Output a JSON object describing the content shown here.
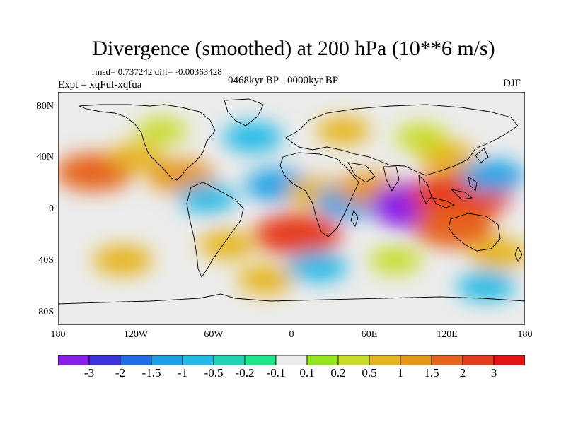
{
  "title": "Divergence (smoothed) at 200 hPa (10**6 m/s)",
  "stats": "rmsd= 0.737242 diff= -0.00363428",
  "experiment": "Expt = xqFul-xqfua",
  "period": "0468kyr BP - 0000kyr BP",
  "season": "DJF",
  "lat_labels": [
    "80N",
    "40N",
    "0",
    "40S",
    "80S"
  ],
  "lon_labels": [
    "180",
    "120W",
    "60W",
    "0",
    "60E",
    "120E",
    "180"
  ],
  "colorbar": {
    "levels": [
      "-3",
      "-2",
      "-1.5",
      "-1",
      "-0.5",
      "-0.2",
      "-0.1",
      "0.1",
      "0.2",
      "0.5",
      "1",
      "1.5",
      "2",
      "3"
    ],
    "colors": [
      "#8a1ee6",
      "#3c32dc",
      "#1e6ee6",
      "#1ea0e6",
      "#22b9e6",
      "#1ed2b4",
      "#1ee68c",
      "#ececec",
      "#96e61e",
      "#c8dc28",
      "#e6b41e",
      "#e6961e",
      "#e6641e",
      "#e63c1e",
      "#e61414"
    ]
  },
  "chart_data": {
    "type": "heatmap",
    "title": "Divergence (smoothed) at 200 hPa (10**6 m/s)",
    "units": "10**6 m/s",
    "x_range": [
      -180,
      180
    ],
    "y_range": [
      -90,
      90
    ],
    "features": [
      {
        "lon": -152,
        "lat": 28,
        "value": 1.8
      },
      {
        "lon": -85,
        "lat": 25,
        "value": 1.3
      },
      {
        "lon": -120,
        "lat": 40,
        "value": 0.6
      },
      {
        "lon": -65,
        "lat": 8,
        "value": -0.8
      },
      {
        "lon": -50,
        "lat": -28,
        "value": 0.7
      },
      {
        "lon": -10,
        "lat": 18,
        "value": -1.2
      },
      {
        "lon": 5,
        "lat": -20,
        "value": 2.3
      },
      {
        "lon": 20,
        "lat": 12,
        "value": 1.0
      },
      {
        "lon": 45,
        "lat": 5,
        "value": -1.3
      },
      {
        "lon": 60,
        "lat": 15,
        "value": 1.2
      },
      {
        "lon": 100,
        "lat": 2,
        "value": -3.0
      },
      {
        "lon": 130,
        "lat": 10,
        "value": 3.0
      },
      {
        "lon": 125,
        "lat": -15,
        "value": 2.0
      },
      {
        "lon": 155,
        "lat": 25,
        "value": -1.1
      },
      {
        "lon": 120,
        "lat": 40,
        "value": 0.8
      },
      {
        "lon": 100,
        "lat": 55,
        "value": 0.5
      },
      {
        "lon": 40,
        "lat": 60,
        "value": 0.6
      },
      {
        "lon": -30,
        "lat": 55,
        "value": -0.9
      },
      {
        "lon": -100,
        "lat": 60,
        "value": 0.4
      },
      {
        "lon": 160,
        "lat": -35,
        "value": 0.9
      },
      {
        "lon": -130,
        "lat": -40,
        "value": 0.9
      },
      {
        "lon": 20,
        "lat": -45,
        "value": -0.9
      },
      {
        "lon": 80,
        "lat": -40,
        "value": 0.5
      },
      {
        "lon": -20,
        "lat": -55,
        "value": 0.7
      },
      {
        "lon": 150,
        "lat": -60,
        "value": -0.8
      }
    ]
  }
}
